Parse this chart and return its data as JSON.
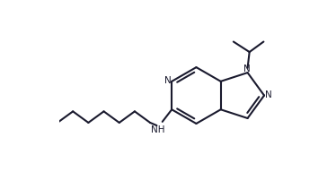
{
  "bg_color": "#ffffff",
  "bond_color": "#1a1a2e",
  "lw": 1.5,
  "dbo": 0.018,
  "figsize": [
    3.74,
    2.11
  ],
  "dpi": 100,
  "xlim": [
    -0.1,
    1.05
  ],
  "ylim": [
    0.0,
    1.0
  ]
}
